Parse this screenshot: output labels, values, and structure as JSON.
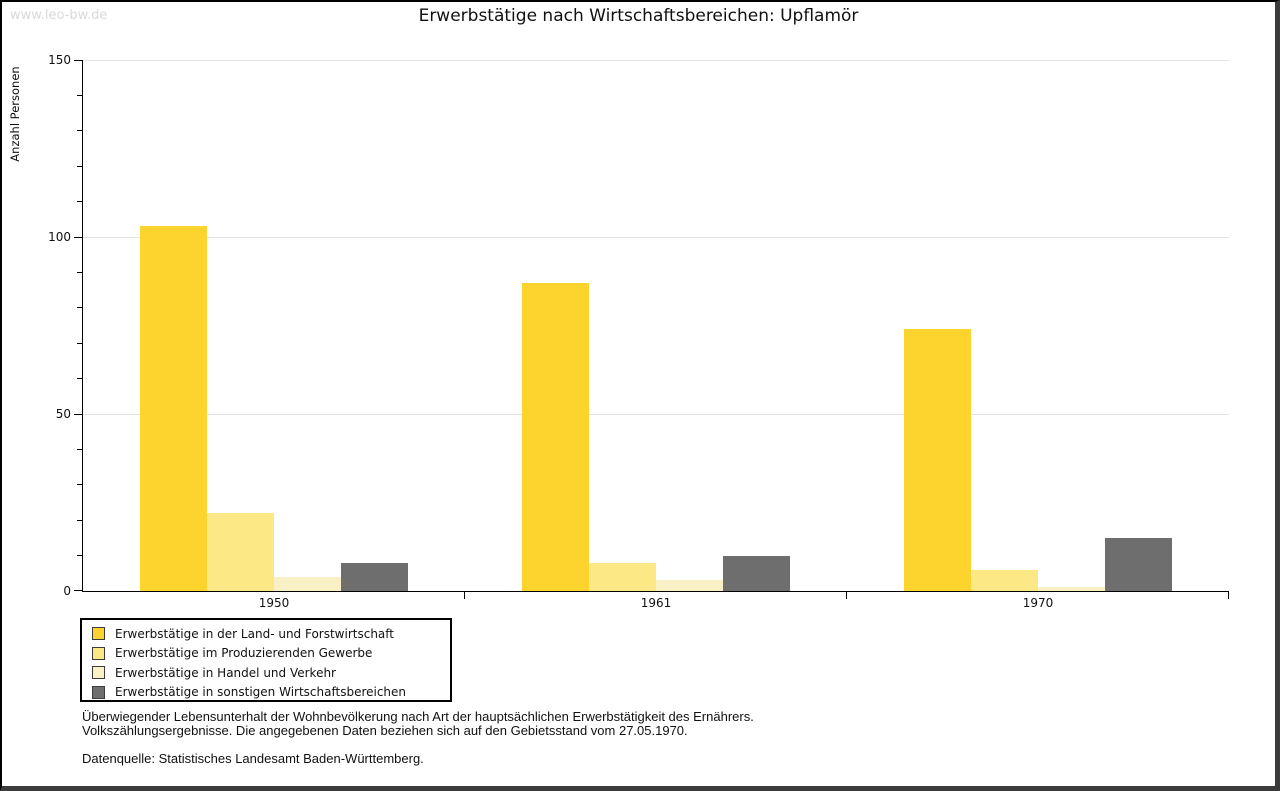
{
  "watermark": "www.leo-bw.de",
  "title": "Erwerbstätige nach Wirtschaftsbereichen: Upflamör",
  "chart_data": {
    "type": "bar",
    "title": "Erwerbstätige nach Wirtschaftsbereichen: Upflamör",
    "xlabel": "",
    "ylabel": "Anzahl Personen",
    "categories": [
      "1950",
      "1961",
      "1970"
    ],
    "series": [
      {
        "name": "Erwerbstätige in der Land- und Forstwirtschaft",
        "color": "#FDD32D",
        "values": [
          103,
          87,
          74
        ]
      },
      {
        "name": "Erwerbstätige im Produzierenden Gewerbe",
        "color": "#FCE885",
        "values": [
          22,
          8,
          6
        ]
      },
      {
        "name": "Erwerbstätige in Handel und Verkehr",
        "color": "#FAF0C5",
        "values": [
          4,
          3,
          1
        ]
      },
      {
        "name": "Erwerbstätige in sonstigen Wirtschaftsbereichen",
        "color": "#6E6E6E",
        "values": [
          8,
          10,
          15
        ]
      }
    ],
    "ylim": [
      0,
      150
    ],
    "ytick_labeled": [
      0,
      50,
      100,
      150
    ],
    "ytick_minor_step": 10,
    "grid": true,
    "gridline_color": "#E4E4E4",
    "legend_position": "bottom-left"
  },
  "footnote": {
    "line1": "Überwiegender Lebensunterhalt der Wohnbevölkerung nach Art der hauptsächlichen Erwerbstätigkeit des Ernährers.",
    "line2": "Volkszählungsergebnisse. Die angegebenen Daten beziehen sich auf den Gebietsstand vom 27.05.1970.",
    "source": "Datenquelle: Statistisches Landesamt Baden-Württemberg."
  }
}
